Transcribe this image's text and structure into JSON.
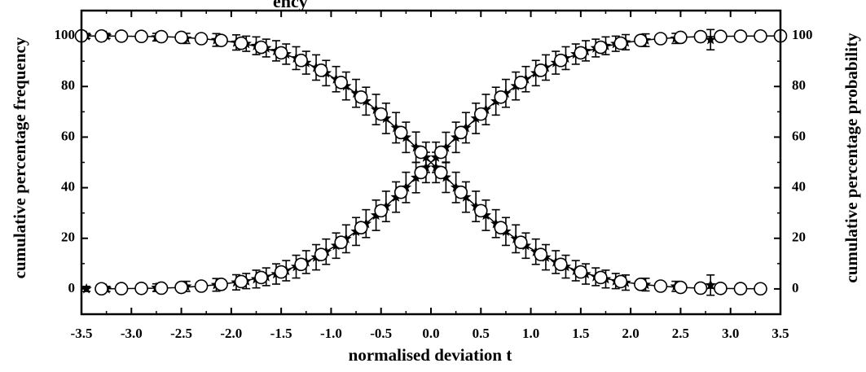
{
  "chart_data": {
    "type": "scatter",
    "title": "",
    "title_partial_visible": "ency",
    "xlabel": "normalised deviation  t",
    "ylabel_left": "cumulative percentage frequency",
    "ylabel_right": "cumulative percentage probability",
    "xlim": [
      -3.5,
      3.5
    ],
    "ylim": [
      -10,
      110
    ],
    "x_ticks": [
      -3.5,
      -3.0,
      -2.5,
      -2.0,
      -1.5,
      -1.0,
      -0.5,
      0.0,
      0.5,
      1.0,
      1.5,
      2.0,
      2.5,
      3.0,
      3.5
    ],
    "x_tick_labels": [
      "-3.5",
      "-3.0",
      "-2.5",
      "-2.0",
      "-1.5",
      "-1.0",
      "-0.5",
      "0.0",
      "0.5",
      "1.0",
      "1.5",
      "2.0",
      "2.5",
      "3.0",
      "3.5"
    ],
    "y_ticks": [
      0,
      20,
      40,
      60,
      80,
      100
    ],
    "y_tick_labels": [
      "0",
      "20",
      "40",
      "60",
      "80",
      "100"
    ],
    "grid": false,
    "legend": "none",
    "series": [
      {
        "kind": "line",
        "marker": "open-circle",
        "x": [
          -3.3,
          -3.1,
          -2.9,
          -2.7,
          -2.5,
          -2.3,
          -2.1,
          -1.9,
          -1.7,
          -1.5,
          -1.3,
          -1.1,
          -0.9,
          -0.7,
          -0.5,
          -0.3,
          -0.1,
          0.1,
          0.3,
          0.5,
          0.7,
          0.9,
          1.1,
          1.3,
          1.5,
          1.7,
          1.9,
          2.1,
          2.3,
          2.5,
          2.7,
          2.9,
          3.1,
          3.3,
          3.5
        ],
        "y": [
          0.05,
          0.1,
          0.2,
          0.3,
          0.6,
          1.1,
          1.8,
          2.9,
          4.5,
          6.7,
          9.7,
          13.6,
          18.4,
          24.2,
          30.9,
          38.2,
          46.0,
          54.0,
          61.8,
          69.1,
          75.8,
          81.6,
          86.4,
          90.3,
          93.3,
          95.5,
          97.1,
          98.2,
          98.9,
          99.4,
          99.7,
          99.8,
          99.9,
          99.95,
          100.0
        ]
      },
      {
        "kind": "line",
        "marker": "open-circle",
        "x": [
          -3.5,
          -3.3,
          -3.1,
          -2.9,
          -2.7,
          -2.5,
          -2.3,
          -2.1,
          -1.9,
          -1.7,
          -1.5,
          -1.3,
          -1.1,
          -0.9,
          -0.7,
          -0.5,
          -0.3,
          -0.1,
          0.1,
          0.3,
          0.5,
          0.7,
          0.9,
          1.1,
          1.3,
          1.5,
          1.7,
          1.9,
          2.1,
          2.3,
          2.5,
          2.7,
          2.9,
          3.1,
          3.3
        ],
        "y": [
          100.0,
          99.95,
          99.9,
          99.8,
          99.7,
          99.4,
          98.9,
          98.2,
          97.1,
          95.5,
          93.3,
          90.3,
          86.4,
          81.6,
          75.8,
          69.1,
          61.8,
          54.0,
          46.0,
          38.2,
          30.9,
          24.2,
          18.4,
          13.6,
          9.7,
          6.7,
          4.5,
          2.9,
          1.8,
          1.1,
          0.6,
          0.3,
          0.2,
          0.1,
          0.05
        ]
      },
      {
        "kind": "errorbar",
        "marker": "filled-star",
        "x": [
          -3.45,
          -3.25,
          -2.75,
          -2.45,
          -2.15,
          -1.95,
          -1.85,
          -1.75,
          -1.65,
          -1.55,
          -1.45,
          -1.35,
          -1.25,
          -1.15,
          -1.05,
          -0.95,
          -0.85,
          -0.75,
          -0.65,
          -0.55,
          -0.45,
          -0.35,
          -0.25,
          -0.15,
          -0.05,
          0.05,
          0.15,
          0.25,
          0.35,
          0.45,
          0.55,
          0.65,
          0.75,
          0.85,
          0.95,
          1.05,
          1.15,
          1.25,
          1.35,
          1.45,
          1.55,
          1.65,
          1.75,
          1.85,
          1.95,
          2.15,
          2.45,
          2.8
        ],
        "y": [
          0.0,
          0.0,
          0.5,
          1.0,
          1.6,
          2.6,
          3.1,
          3.9,
          4.8,
          5.9,
          7.2,
          8.8,
          10.6,
          12.5,
          14.7,
          17.1,
          19.8,
          22.7,
          25.8,
          29.1,
          32.6,
          36.3,
          40.1,
          44.0,
          48.0,
          52.0,
          55.9,
          59.9,
          63.7,
          67.4,
          70.9,
          74.2,
          77.3,
          80.2,
          82.9,
          85.3,
          87.5,
          89.4,
          91.2,
          92.8,
          94.1,
          95.2,
          96.1,
          96.9,
          97.5,
          98.3,
          99.0,
          98.5
        ],
        "err": [
          1.0,
          1.0,
          1.5,
          2.0,
          2.5,
          3.0,
          3.0,
          3.5,
          3.5,
          4.0,
          4.0,
          4.5,
          4.5,
          5.0,
          5.0,
          5.0,
          5.5,
          5.5,
          5.5,
          6.0,
          6.0,
          6.0,
          6.0,
          6.0,
          6.0,
          6.0,
          6.0,
          6.0,
          6.0,
          6.0,
          6.0,
          5.5,
          5.5,
          5.5,
          5.0,
          5.0,
          5.0,
          4.5,
          4.5,
          4.0,
          4.0,
          3.5,
          3.5,
          3.0,
          3.0,
          2.5,
          2.0,
          4.0
        ]
      },
      {
        "kind": "errorbar",
        "marker": "filled-star",
        "x": [
          -3.45,
          -3.25,
          -2.75,
          -2.45,
          -2.15,
          -1.95,
          -1.85,
          -1.75,
          -1.65,
          -1.55,
          -1.45,
          -1.35,
          -1.25,
          -1.15,
          -1.05,
          -0.95,
          -0.85,
          -0.75,
          -0.65,
          -0.55,
          -0.45,
          -0.35,
          -0.25,
          -0.15,
          -0.05,
          0.05,
          0.15,
          0.25,
          0.35,
          0.45,
          0.55,
          0.65,
          0.75,
          0.85,
          0.95,
          1.05,
          1.15,
          1.25,
          1.35,
          1.45,
          1.55,
          1.65,
          1.75,
          1.85,
          1.95,
          2.15,
          2.45,
          2.8
        ],
        "y": [
          100.0,
          100.0,
          99.5,
          99.0,
          98.4,
          97.4,
          96.9,
          96.1,
          95.2,
          94.1,
          92.8,
          91.2,
          89.4,
          87.5,
          85.3,
          82.9,
          80.2,
          77.3,
          74.2,
          70.9,
          67.4,
          63.7,
          59.9,
          56.0,
          52.0,
          48.0,
          44.1,
          40.1,
          36.3,
          32.6,
          29.1,
          25.8,
          22.7,
          19.8,
          17.1,
          14.7,
          12.5,
          10.6,
          8.8,
          7.2,
          5.9,
          4.8,
          3.9,
          3.1,
          2.5,
          1.7,
          1.0,
          1.5
        ],
        "err": [
          1.0,
          1.0,
          1.5,
          2.0,
          2.5,
          3.0,
          3.0,
          3.5,
          3.5,
          4.0,
          4.0,
          4.5,
          4.5,
          5.0,
          5.0,
          5.0,
          5.5,
          5.5,
          5.5,
          6.0,
          6.0,
          6.0,
          6.0,
          6.0,
          6.0,
          6.0,
          6.0,
          6.0,
          6.0,
          6.0,
          6.0,
          5.5,
          5.5,
          5.5,
          5.0,
          5.0,
          5.0,
          4.5,
          4.5,
          4.0,
          4.0,
          3.5,
          3.5,
          3.0,
          3.0,
          2.5,
          2.0,
          4.0
        ]
      }
    ]
  }
}
